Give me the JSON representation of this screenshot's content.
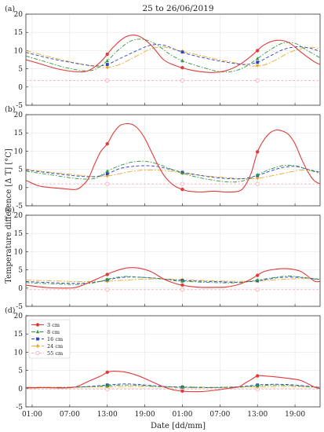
{
  "chart_data": {
    "type": "line",
    "title": "25 to 26/06/2019",
    "xlabel": "Date [dd/mm]",
    "ylabel": "Temperature difference [Δ T]  [°C]",
    "x_unit": "hours from 25/06 00:00",
    "x_range": [
      0,
      47
    ],
    "x_tick_labels": [
      "01:00",
      "07:00",
      "13:00",
      "19:00",
      "01:00",
      "07:00",
      "13:00",
      "19:00"
    ],
    "x_tick_positions": [
      1,
      7,
      13,
      19,
      25,
      31,
      37,
      43
    ],
    "ylim": [
      -5,
      20
    ],
    "y_ticks": [
      -5,
      0,
      5,
      10,
      15,
      20
    ],
    "grid": true,
    "legend_position": "upper-left (panel d)",
    "legend": [
      {
        "name": "3 cm",
        "color": "#e03a3a",
        "dash": "",
        "marker": "circle-filled"
      },
      {
        "name": "8 cm",
        "color": "#2e9a3a",
        "dash": "5,2,1.5,2",
        "marker": "triangle"
      },
      {
        "name": "16 cm",
        "color": "#2842c8",
        "dash": "4,2.5",
        "marker": "square"
      },
      {
        "name": "24 cm",
        "color": "#f0a830",
        "dash": "7,2,2,2",
        "marker": "diamond"
      },
      {
        "name": "55 cm",
        "color": "#f5b0b8",
        "dash": "3,2",
        "marker": "circle-open"
      }
    ],
    "panels": [
      {
        "label": "(a)",
        "series": [
          {
            "name": "3 cm",
            "x": [
              0,
              2,
              5,
              8,
              10,
              12,
              14,
              16,
              18,
              20,
              22,
              24,
              26,
              28,
              30,
              32,
              34,
              36,
              38,
              40,
              42,
              44,
              46,
              47
            ],
            "y": [
              7.5,
              6.5,
              5.0,
              4.2,
              4.5,
              7.0,
              11.0,
              13.8,
              14.0,
              11.5,
              7.5,
              5.8,
              4.8,
              4.2,
              4.0,
              4.5,
              6.0,
              8.5,
              11.5,
              12.8,
              12.2,
              9.5,
              7.0,
              6.2
            ]
          },
          {
            "name": "8 cm",
            "x": [
              0,
              3,
              6,
              9,
              11,
              13,
              15,
              17,
              19,
              21,
              23,
              25,
              27,
              29,
              31,
              33,
              35,
              37,
              39,
              41,
              43,
              45,
              47
            ],
            "y": [
              8.5,
              7.0,
              5.5,
              4.5,
              4.8,
              7.2,
              10.5,
              12.8,
              13.0,
              11.5,
              9.0,
              7.2,
              6.0,
              5.0,
              4.2,
              4.3,
              5.5,
              7.8,
              10.2,
              12.0,
              12.0,
              10.0,
              8.0
            ]
          },
          {
            "name": "16 cm",
            "x": [
              0,
              4,
              8,
              11,
              13,
              15,
              18,
              20,
              22,
              24,
              26,
              29,
              32,
              35,
              37,
              39,
              41,
              43,
              45,
              47
            ],
            "y": [
              9.5,
              7.8,
              6.5,
              5.8,
              6.2,
              7.8,
              10.2,
              11.5,
              11.5,
              10.2,
              9.0,
              7.8,
              6.8,
              6.2,
              6.8,
              8.5,
              10.2,
              11.0,
              10.8,
              9.8
            ]
          },
          {
            "name": "24 cm",
            "x": [
              0,
              4,
              8,
              11,
              13,
              15,
              18,
              20,
              22,
              24,
              27,
              30,
              33,
              36,
              38,
              40,
              42,
              44,
              46,
              47
            ],
            "y": [
              10.0,
              8.2,
              6.6,
              5.6,
              5.4,
              6.2,
              8.8,
              10.5,
              11.0,
              10.2,
              9.0,
              7.8,
              6.8,
              5.8,
              6.0,
              7.5,
              9.4,
              10.5,
              10.8,
              10.5
            ]
          },
          {
            "name": "55 cm",
            "x": [
              0,
              47
            ],
            "y": [
              1.8,
              1.8
            ],
            "markers_x": [
              13,
              25,
              37
            ]
          }
        ]
      },
      {
        "label": "(b)",
        "series": [
          {
            "name": "3 cm",
            "x": [
              0,
              2,
              4,
              6,
              8,
              9,
              10,
              11,
              12,
              13,
              14,
              15,
              16,
              17,
              18,
              19,
              20,
              21,
              22,
              23,
              24,
              25,
              26,
              28,
              30,
              32,
              34,
              35,
              36,
              37,
              38,
              39,
              40,
              41,
              42,
              43,
              44,
              45,
              46,
              47
            ],
            "y": [
              2.0,
              0.5,
              0,
              -0.3,
              -0.5,
              0.5,
              2.5,
              6.5,
              10.0,
              12.0,
              15.0,
              17.0,
              17.5,
              17.3,
              16.0,
              13.5,
              10.0,
              6.5,
              3.5,
              1.5,
              0.2,
              -0.5,
              -1.0,
              -1.2,
              -1.0,
              -1.2,
              -1.0,
              0.5,
              4.0,
              9.8,
              13.0,
              15.0,
              15.8,
              15.5,
              14.5,
              12.0,
              8.0,
              4.5,
              2.0,
              1.0
            ]
          },
          {
            "name": "8 cm",
            "x": [
              0,
              4,
              8,
              11,
              13,
              15,
              17,
              19,
              21,
              23,
              25,
              27,
              30,
              33,
              35,
              37,
              39,
              41,
              43,
              45,
              47
            ],
            "y": [
              4.5,
              3.5,
              2.5,
              2.5,
              4.5,
              6.0,
              7.0,
              7.2,
              6.5,
              5.2,
              4.0,
              3.0,
              2.0,
              1.5,
              2.0,
              3.5,
              5.0,
              6.0,
              6.0,
              5.0,
              3.8
            ]
          },
          {
            "name": "16 cm",
            "x": [
              0,
              4,
              8,
              11,
              13,
              15,
              17,
              19,
              21,
              23,
              25,
              27,
              30,
              33,
              35,
              37,
              39,
              41,
              43,
              45,
              47
            ],
            "y": [
              4.8,
              4.0,
              3.2,
              3.0,
              3.8,
              5.2,
              5.8,
              6.0,
              5.8,
              5.0,
              4.2,
              3.6,
              2.8,
              2.4,
              2.5,
              3.3,
              4.5,
              5.5,
              5.8,
              5.0,
              4.2
            ]
          },
          {
            "name": "24 cm",
            "x": [
              0,
              4,
              8,
              11,
              13,
              15,
              17,
              19,
              21,
              23,
              25,
              27,
              30,
              33,
              36,
              38,
              40,
              42,
              44,
              46,
              47
            ],
            "y": [
              5.0,
              4.2,
              3.5,
              3.0,
              3.2,
              3.8,
              4.5,
              4.8,
              4.8,
              4.5,
              4.0,
              3.5,
              3.0,
              2.6,
              2.4,
              2.8,
              3.5,
              4.2,
              4.8,
              4.5,
              4.0
            ]
          },
          {
            "name": "55 cm",
            "x": [
              0,
              47
            ],
            "y": [
              1.0,
              1.0
            ],
            "markers_x": [
              13,
              25,
              37
            ]
          }
        ]
      },
      {
        "label": "(c)",
        "series": [
          {
            "name": "3 cm",
            "x": [
              0,
              3,
              6,
              8,
              10,
              12,
              14,
              16,
              18,
              20,
              22,
              24,
              26,
              28,
              30,
              32,
              34,
              36,
              38,
              40,
              42,
              44,
              46,
              47
            ],
            "y": [
              0.8,
              0.2,
              0,
              0.2,
              1.5,
              3.0,
              4.5,
              5.5,
              5.5,
              4.5,
              2.5,
              1.2,
              0.5,
              0.2,
              0.2,
              0.3,
              1.0,
              2.5,
              4.5,
              5.2,
              5.3,
              4.5,
              2.0,
              1.8
            ]
          },
          {
            "name": "8 cm",
            "x": [
              0,
              4,
              8,
              11,
              14,
              16,
              18,
              20,
              22,
              24,
              26,
              30,
              34,
              37,
              40,
              42,
              44,
              46,
              47
            ],
            "y": [
              1.5,
              1.2,
              1.0,
              1.5,
              2.8,
              3.2,
              3.0,
              2.8,
              2.5,
              2.0,
              1.8,
              1.5,
              1.5,
              2.2,
              3.0,
              3.3,
              3.0,
              2.5,
              2.3
            ]
          },
          {
            "name": "16 cm",
            "x": [
              0,
              4,
              8,
              11,
              14,
              16,
              18,
              20,
              22,
              24,
              26,
              30,
              34,
              37,
              40,
              42,
              44,
              46,
              47
            ],
            "y": [
              1.8,
              1.5,
              1.3,
              1.6,
              2.6,
              3.0,
              3.0,
              2.8,
              2.5,
              2.2,
              2.0,
              1.8,
              1.6,
              2.0,
              2.8,
              3.0,
              2.9,
              2.6,
              2.4
            ]
          },
          {
            "name": "24 cm",
            "x": [
              0,
              4,
              8,
              12,
              16,
              20,
              24,
              28,
              32,
              36,
              40,
              44,
              47
            ],
            "y": [
              2.2,
              2.0,
              1.8,
              1.8,
              2.2,
              2.5,
              2.4,
              2.1,
              1.9,
              1.9,
              2.3,
              2.6,
              2.5
            ]
          },
          {
            "name": "55 cm",
            "x": [
              0,
              47
            ],
            "y": [
              -0.4,
              -0.4
            ],
            "markers_x": [
              13,
              25,
              37
            ]
          }
        ]
      },
      {
        "label": "(d)",
        "series": [
          {
            "name": "3 cm",
            "x": [
              0,
              3,
              6,
              8,
              10,
              12,
              13,
              14,
              16,
              18,
              20,
              22,
              24,
              26,
              28,
              30,
              32,
              34,
              35,
              36,
              37,
              38,
              40,
              42,
              44,
              46,
              47
            ],
            "y": [
              0.2,
              0.3,
              0.2,
              0.5,
              2.0,
              3.5,
              4.5,
              4.8,
              4.5,
              3.5,
              2.0,
              0.5,
              -0.5,
              -0.8,
              -0.8,
              -0.5,
              0,
              0.5,
              1.5,
              2.5,
              3.5,
              3.5,
              3.2,
              2.8,
              2.2,
              0.5,
              0
            ]
          },
          {
            "name": "8 cm",
            "x": [
              0,
              6,
              10,
              13,
              16,
              19,
              22,
              26,
              30,
              34,
              37,
              40,
              43,
              46,
              47
            ],
            "y": [
              0.2,
              0.3,
              0.5,
              0.8,
              1.0,
              0.8,
              0.5,
              0.3,
              0.3,
              0.4,
              0.8,
              1.0,
              0.8,
              0.4,
              0.2
            ]
          },
          {
            "name": "16 cm",
            "x": [
              0,
              6,
              10,
              13,
              16,
              19,
              22,
              26,
              30,
              34,
              37,
              40,
              43,
              46,
              47
            ],
            "y": [
              0.3,
              0.3,
              0.6,
              1.0,
              1.3,
              1.0,
              0.6,
              0.4,
              0.3,
              0.5,
              1.0,
              1.2,
              1.0,
              0.5,
              0.3
            ]
          },
          {
            "name": "24 cm",
            "x": [
              0,
              6,
              12,
              18,
              24,
              30,
              36,
              42,
              47
            ],
            "y": [
              0.4,
              0.4,
              0.5,
              0.6,
              0.5,
              0.4,
              0.5,
              0.6,
              0.5
            ]
          },
          {
            "name": "55 cm",
            "x": [
              0,
              47
            ],
            "y": [
              -0.1,
              -0.1
            ],
            "markers_x": [
              13,
              25,
              37
            ]
          }
        ]
      }
    ]
  }
}
